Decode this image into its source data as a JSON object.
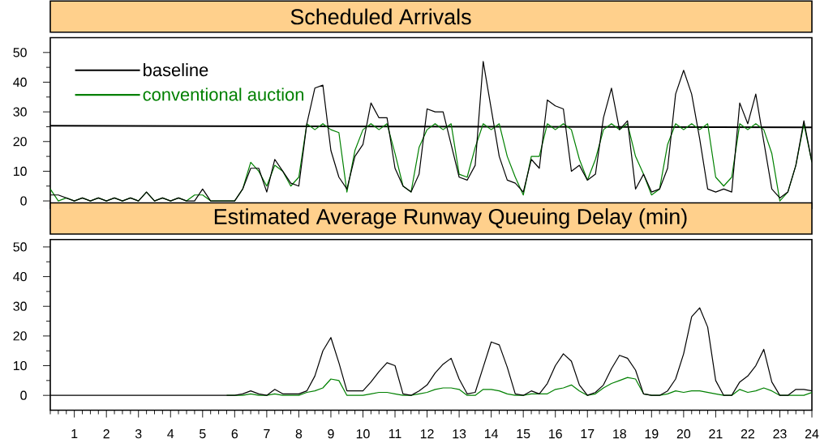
{
  "chart_data": [
    {
      "type": "line",
      "title": "Scheduled Arrivals",
      "x": [
        0.25,
        0.5,
        0.75,
        1,
        1.25,
        1.5,
        1.75,
        2,
        2.25,
        2.5,
        2.75,
        3,
        3.25,
        3.5,
        3.75,
        4,
        4.25,
        4.5,
        4.75,
        5,
        5.25,
        5.5,
        5.75,
        6,
        6.25,
        6.5,
        6.75,
        7,
        7.25,
        7.5,
        7.75,
        8,
        8.25,
        8.5,
        8.75,
        9,
        9.25,
        9.5,
        9.75,
        10,
        10.25,
        10.5,
        10.75,
        11,
        11.25,
        11.5,
        11.75,
        12,
        12.25,
        12.5,
        12.75,
        13,
        13.25,
        13.5,
        13.75,
        14,
        14.25,
        14.5,
        14.75,
        15,
        15.25,
        15.5,
        15.75,
        16,
        16.25,
        16.5,
        16.75,
        17,
        17.25,
        17.5,
        17.75,
        18,
        18.25,
        18.5,
        18.75,
        19,
        19.25,
        19.5,
        19.75,
        20,
        20.25,
        20.5,
        20.75,
        21,
        21.25,
        21.5,
        21.75,
        22,
        22.25,
        22.5,
        22.75,
        23,
        23.25,
        23.5,
        23.75,
        24
      ],
      "series": [
        {
          "name": "baseline",
          "color": "#000000",
          "values": [
            2,
            2,
            1,
            0,
            1,
            0,
            1,
            0,
            1,
            0,
            1,
            0,
            3,
            0,
            1,
            0,
            1,
            0,
            0,
            4,
            0,
            0,
            0,
            0,
            4,
            11,
            11,
            3,
            14,
            10,
            6,
            5,
            26,
            38,
            39,
            17,
            8,
            4,
            15,
            19,
            33,
            28,
            28,
            11,
            5,
            3,
            9,
            31,
            30,
            30,
            19,
            8,
            7,
            12,
            47,
            31,
            15,
            7,
            6,
            3,
            14,
            11,
            34,
            32,
            31,
            10,
            12,
            7,
            9,
            28,
            38,
            24,
            27,
            4,
            9,
            3,
            4,
            11,
            36,
            44,
            36,
            21,
            4,
            3,
            4,
            3,
            33,
            26,
            36,
            20,
            4,
            1,
            3,
            12,
            27,
            13
          ]
        },
        {
          "name": "conventional auction",
          "color": "#008000",
          "values": [
            4,
            0,
            1,
            0,
            1,
            0,
            1,
            0,
            1,
            0,
            1,
            0,
            3,
            0,
            1,
            0,
            1,
            0,
            2,
            2,
            0,
            0,
            0,
            0,
            4,
            13,
            10,
            5,
            12,
            10,
            5,
            8,
            26,
            24,
            26,
            24,
            23,
            3,
            17,
            24,
            26,
            24,
            26,
            16,
            5,
            3,
            18,
            24,
            26,
            24,
            26,
            9,
            8,
            18,
            26,
            24,
            26,
            15,
            8,
            2,
            15,
            15,
            26,
            24,
            26,
            24,
            14,
            7,
            14,
            24,
            26,
            24,
            26,
            15,
            9,
            2,
            4,
            19,
            26,
            24,
            26,
            24,
            26,
            8,
            5,
            8,
            26,
            24,
            26,
            24,
            16,
            0,
            3,
            12,
            26,
            13
          ]
        },
        {
          "color": "#000000",
          "x": [
            0.25,
            24
          ],
          "values": [
            25.3,
            24.8
          ]
        }
      ],
      "xlim": [
        0.25,
        24
      ],
      "ylim": [
        -2.5,
        55
      ],
      "yticks": [
        0,
        {
          "value": 5,
          "label": null
        },
        10,
        {
          "value": 15,
          "label": null
        },
        20,
        {
          "value": 25,
          "label": null
        },
        30,
        {
          "value": 35,
          "label": null
        },
        40,
        {
          "value": 45,
          "label": null
        },
        50
      ],
      "legend": "top left",
      "tick_labels": "y"
    },
    {
      "type": "line",
      "title": "Estimated Average Runway Queuing Delay (min)",
      "x": [
        0.25,
        0.5,
        0.75,
        1,
        1.25,
        1.5,
        1.75,
        2,
        2.25,
        2.5,
        2.75,
        3,
        3.25,
        3.5,
        3.75,
        4,
        4.25,
        4.5,
        4.75,
        5,
        5.25,
        5.5,
        5.75,
        6,
        6.25,
        6.5,
        6.75,
        7,
        7.25,
        7.5,
        7.75,
        8,
        8.25,
        8.5,
        8.75,
        9,
        9.25,
        9.5,
        9.75,
        10,
        10.25,
        10.5,
        10.75,
        11,
        11.25,
        11.5,
        11.75,
        12,
        12.25,
        12.5,
        12.75,
        13,
        13.25,
        13.5,
        13.75,
        14,
        14.25,
        14.5,
        14.75,
        15,
        15.25,
        15.5,
        15.75,
        16,
        16.25,
        16.5,
        16.75,
        17,
        17.25,
        17.5,
        17.75,
        18,
        18.25,
        18.5,
        18.75,
        19,
        19.25,
        19.5,
        19.75,
        20,
        20.25,
        20.5,
        20.75,
        21,
        21.25,
        21.5,
        21.75,
        22,
        22.25,
        22.5,
        22.75,
        23,
        23.25,
        23.5,
        23.75,
        24
      ],
      "series": [
        {
          "color": "#000000",
          "values": [
            0,
            0,
            0,
            0,
            0,
            0,
            0,
            0,
            0,
            0,
            0,
            0,
            0,
            0,
            0,
            0,
            0,
            0,
            0,
            0,
            0,
            0,
            0,
            0,
            0.5,
            1.5,
            0.5,
            0,
            2,
            0.5,
            0.5,
            0.5,
            1.5,
            6.5,
            15,
            19.5,
            11,
            1.5,
            1.5,
            1.5,
            4.5,
            8,
            11,
            10,
            0.5,
            0,
            1.5,
            3.5,
            7.5,
            10.5,
            12.5,
            5.5,
            0.5,
            1,
            9.5,
            18,
            17,
            9.5,
            0.5,
            0,
            1.5,
            0.5,
            4,
            10,
            14,
            11.5,
            3.5,
            0,
            1,
            3.5,
            9,
            13.5,
            12.5,
            8.5,
            0.5,
            0,
            0,
            1.5,
            5.5,
            14,
            26.5,
            29.5,
            23,
            5,
            0,
            0,
            4.5,
            6.5,
            10,
            15.5,
            4.5,
            0,
            0,
            2,
            2,
            1.5
          ]
        },
        {
          "color": "#008000",
          "values": [
            null,
            null,
            null,
            null,
            null,
            null,
            null,
            null,
            null,
            null,
            null,
            null,
            null,
            null,
            null,
            null,
            null,
            null,
            null,
            null,
            null,
            null,
            0,
            0,
            0,
            0.5,
            0,
            0,
            0.5,
            0,
            0,
            0,
            1,
            1.5,
            2.5,
            5.5,
            5,
            0,
            0,
            0,
            0.5,
            1,
            1,
            0.5,
            0,
            0,
            0.5,
            1,
            2,
            2.5,
            2.5,
            2,
            0,
            0,
            2,
            2,
            1.5,
            0.5,
            0,
            0,
            0.5,
            0.5,
            0.5,
            2,
            2.5,
            3.5,
            1.5,
            0,
            0.5,
            2.5,
            4,
            5,
            6,
            5.5,
            0.5,
            0,
            0,
            0.5,
            1.5,
            1,
            1.5,
            1.5,
            1,
            0.5,
            0,
            0,
            2,
            1,
            1.5,
            2.5,
            1.5,
            0,
            0,
            0,
            0,
            1
          ]
        }
      ],
      "xlim": [
        0.25,
        24
      ],
      "ylim": [
        -5,
        52.5
      ],
      "xticks": [
        {
          "value": 0.25,
          "label": null
        },
        {
          "value": 0.5,
          "label": null
        },
        {
          "value": 0.75,
          "label": null
        },
        1,
        {
          "value": 1.25,
          "label": null
        },
        {
          "value": 1.5,
          "label": null
        },
        {
          "value": 1.75,
          "label": null
        },
        2,
        {
          "value": 2.25,
          "label": null
        },
        {
          "value": 2.5,
          "label": null
        },
        {
          "value": 2.75,
          "label": null
        },
        3,
        {
          "value": 3.25,
          "label": null
        },
        {
          "value": 3.5,
          "label": null
        },
        {
          "value": 3.75,
          "label": null
        },
        4,
        {
          "value": 4.25,
          "label": null
        },
        {
          "value": 4.5,
          "label": null
        },
        {
          "value": 4.75,
          "label": null
        },
        5,
        {
          "value": 5.25,
          "label": null
        },
        {
          "value": 5.5,
          "label": null
        },
        {
          "value": 5.75,
          "label": null
        },
        6,
        {
          "value": 6.25,
          "label": null
        },
        {
          "value": 6.5,
          "label": null
        },
        {
          "value": 6.75,
          "label": null
        },
        7,
        {
          "value": 7.25,
          "label": null
        },
        {
          "value": 7.5,
          "label": null
        },
        {
          "value": 7.75,
          "label": null
        },
        8,
        {
          "value": 8.25,
          "label": null
        },
        {
          "value": 8.5,
          "label": null
        },
        {
          "value": 8.75,
          "label": null
        },
        9,
        {
          "value": 9.25,
          "label": null
        },
        {
          "value": 9.5,
          "label": null
        },
        {
          "value": 9.75,
          "label": null
        },
        10,
        {
          "value": 10.25,
          "label": null
        },
        {
          "value": 10.5,
          "label": null
        },
        {
          "value": 10.75,
          "label": null
        },
        11,
        {
          "value": 11.25,
          "label": null
        },
        {
          "value": 11.5,
          "label": null
        },
        {
          "value": 11.75,
          "label": null
        },
        12,
        {
          "value": 12.25,
          "label": null
        },
        {
          "value": 12.5,
          "label": null
        },
        {
          "value": 12.75,
          "label": null
        },
        13,
        {
          "value": 13.25,
          "label": null
        },
        {
          "value": 13.5,
          "label": null
        },
        {
          "value": 13.75,
          "label": null
        },
        14,
        {
          "value": 14.25,
          "label": null
        },
        {
          "value": 14.5,
          "label": null
        },
        {
          "value": 14.75,
          "label": null
        },
        15,
        {
          "value": 15.25,
          "label": null
        },
        {
          "value": 15.5,
          "label": null
        },
        {
          "value": 15.75,
          "label": null
        },
        16,
        {
          "value": 16.25,
          "label": null
        },
        {
          "value": 16.5,
          "label": null
        },
        {
          "value": 16.75,
          "label": null
        },
        17,
        {
          "value": 17.25,
          "label": null
        },
        {
          "value": 17.5,
          "label": null
        },
        {
          "value": 17.75,
          "label": null
        },
        18,
        {
          "value": 18.25,
          "label": null
        },
        {
          "value": 18.5,
          "label": null
        },
        {
          "value": 18.75,
          "label": null
        },
        19,
        {
          "value": 19.25,
          "label": null
        },
        {
          "value": 19.5,
          "label": null
        },
        {
          "value": 19.75,
          "label": null
        },
        20,
        {
          "value": 20.25,
          "label": null
        },
        {
          "value": 20.5,
          "label": null
        },
        {
          "value": 20.75,
          "label": null
        },
        21,
        {
          "value": 21.25,
          "label": null
        },
        {
          "value": 21.5,
          "label": null
        },
        {
          "value": 21.75,
          "label": null
        },
        22,
        {
          "value": 22.25,
          "label": null
        },
        {
          "value": 22.5,
          "label": null
        },
        {
          "value": 22.75,
          "label": null
        },
        23,
        {
          "value": 23.25,
          "label": null
        },
        {
          "value": 23.5,
          "label": null
        },
        {
          "value": 23.75,
          "label": null
        },
        24
      ],
      "yticks": [
        0,
        {
          "value": 5,
          "label": null
        },
        10,
        {
          "value": 15,
          "label": null
        },
        20,
        {
          "value": 25,
          "label": null
        },
        30,
        {
          "value": 35,
          "label": null
        },
        40,
        {
          "value": 45,
          "label": null
        },
        50
      ]
    }
  ]
}
